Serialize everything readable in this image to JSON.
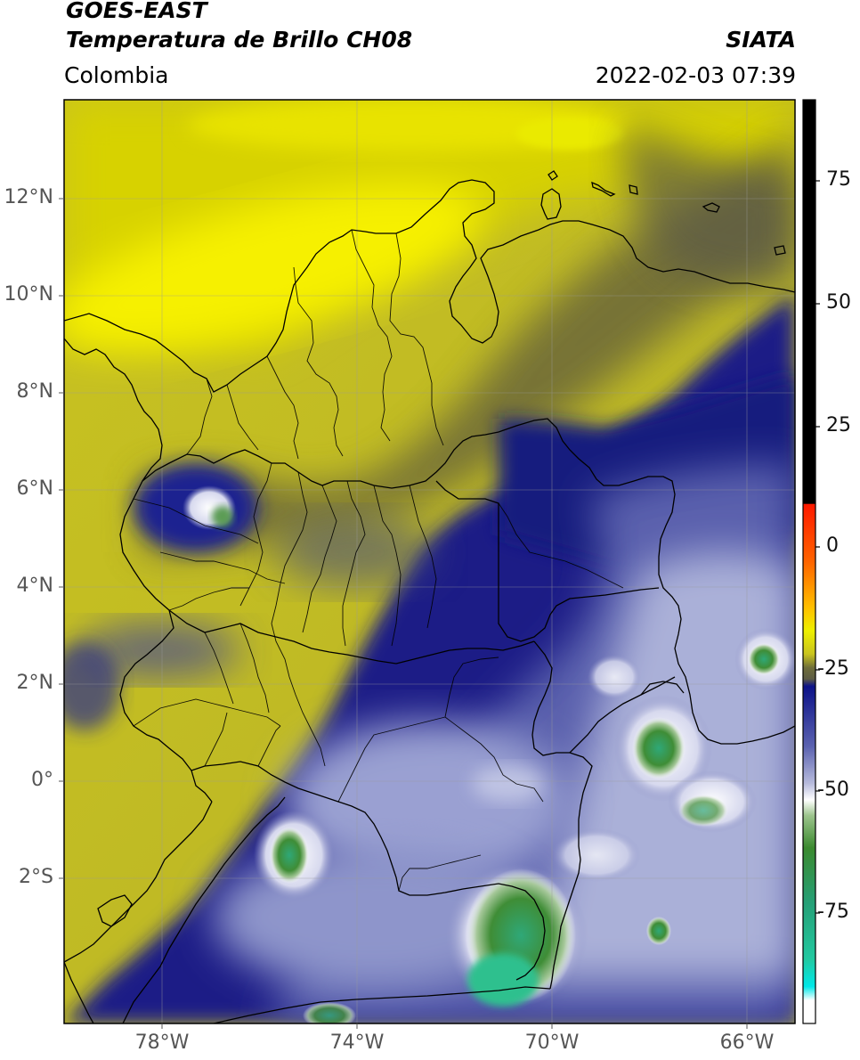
{
  "header": {
    "satellite": "GOES-EAST",
    "product": "Temperatura de Brillo CH08",
    "region": "Colombia",
    "agency": "SIATA",
    "datetime": "2022-02-03 07:39"
  },
  "map": {
    "lat_ticks": [
      "12°N",
      "10°N",
      "8°N",
      "6°N",
      "4°N",
      "2°N",
      "0°",
      "2°S"
    ],
    "lon_ticks": [
      "78°W",
      "74°W",
      "70°W",
      "66°W"
    ],
    "grid": true
  },
  "colorbar": {
    "ticks": [
      "75",
      "50",
      "25",
      "0",
      "-25",
      "-50",
      "-75"
    ],
    "colors": {
      "black": "#000000",
      "red": "#ff1a00",
      "orange": "#ff9a00",
      "yellow": "#e9e600",
      "olive": "#77762a",
      "navy": "#141a80",
      "lavender": "#c4c8e4",
      "white": "#ffffff",
      "green": "#3a8a2e",
      "teal": "#2ec79a",
      "cyan": "#10e6e6"
    }
  }
}
